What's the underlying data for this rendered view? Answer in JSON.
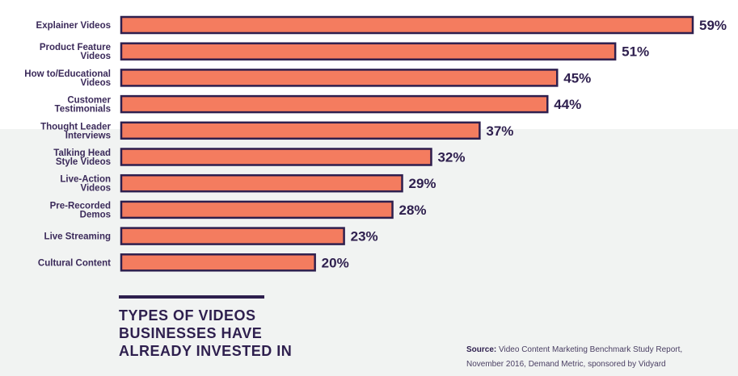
{
  "chart_data": {
    "type": "bar",
    "orientation": "horizontal",
    "categories": [
      [
        "Explainer Videos"
      ],
      [
        "Product Feature",
        "Videos"
      ],
      [
        "How to/Educational",
        "Videos"
      ],
      [
        "Customer",
        "Testimonials"
      ],
      [
        "Thought Leader",
        "Interviews"
      ],
      [
        "Talking Head",
        "Style Videos"
      ],
      [
        "Live-Action",
        "Videos"
      ],
      [
        "Pre-Recorded",
        "Demos"
      ],
      [
        "Live Streaming"
      ],
      [
        "Cultural Content"
      ]
    ],
    "values": [
      59,
      51,
      45,
      44,
      37,
      32,
      29,
      28,
      23,
      20
    ],
    "value_labels": [
      "59%",
      "51%",
      "45%",
      "44%",
      "37%",
      "32%",
      "29%",
      "28%",
      "23%",
      "20%"
    ],
    "xlim": [
      0,
      59
    ],
    "title_lines": [
      "TYPES OF VIDEOS",
      "BUSINESSES HAVE",
      "ALREADY INVESTED IN"
    ],
    "grid": false,
    "colors": {
      "bar_fill": "#f47c5f",
      "bar_stroke": "#2e1f4e"
    }
  },
  "source": {
    "label": "Source:",
    "line1": "Video Content Marketing Benchmark Study Report,",
    "line2": "November 2016, Demand Metric, sponsored by Vidyard"
  }
}
